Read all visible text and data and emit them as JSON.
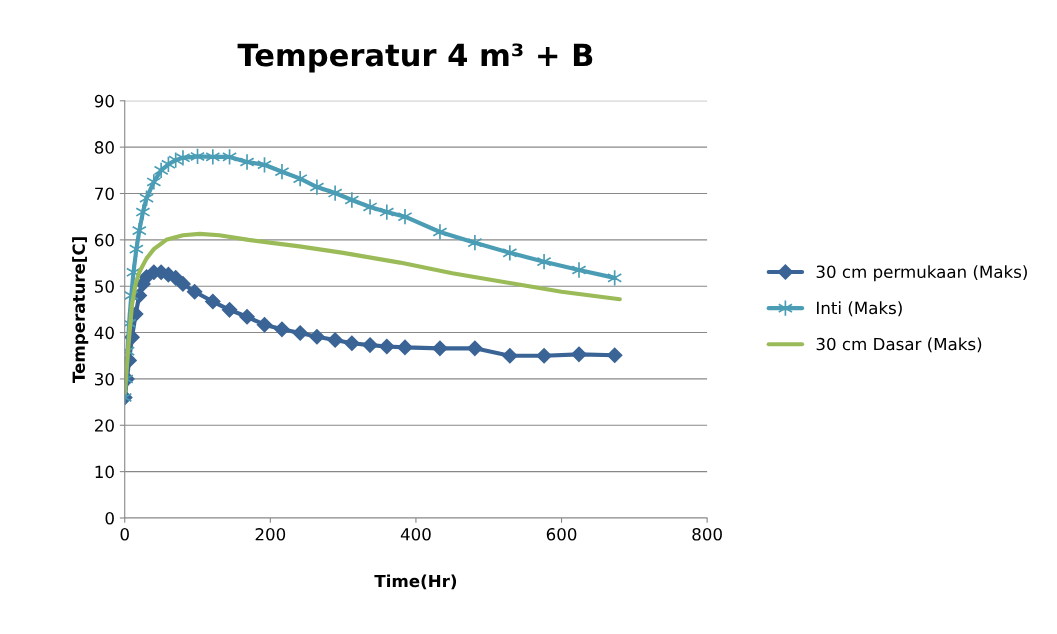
{
  "chart_data": {
    "type": "line",
    "title": "Temperatur 4 m³ + B",
    "xlabel": "Time(Hr)",
    "ylabel": "Temperature[C]",
    "xlim": [
      0,
      800
    ],
    "xticks": [
      0,
      200,
      400,
      600,
      800
    ],
    "ylim": [
      0,
      90
    ],
    "yticks": [
      0,
      10,
      20,
      30,
      40,
      50,
      60,
      70,
      80,
      90
    ],
    "grid": "y",
    "legend": "right",
    "series": [
      {
        "name": "30 cm permukaan (Maks)",
        "color": "#3b6496",
        "marker": "diamond",
        "x": [
          0,
          3,
          6,
          10,
          15,
          20,
          25,
          30,
          40,
          50,
          60,
          70,
          80,
          96,
          121,
          144,
          168,
          192,
          216,
          241,
          264,
          289,
          312,
          337,
          360,
          385,
          433,
          481,
          529,
          576,
          624,
          673
        ],
        "values": [
          26,
          30,
          34,
          39,
          44,
          48,
          50.5,
          52,
          53,
          53,
          52.5,
          51.8,
          50.5,
          48.8,
          46.7,
          44.9,
          43.4,
          41.7,
          40.7,
          39.9,
          39.1,
          38.4,
          37.7,
          37.3,
          37.0,
          36.8,
          36.6,
          36.6,
          35.0,
          35.0,
          35.3,
          35.1
        ]
      },
      {
        "name": "Inti (Maks)",
        "color": "#4a9db5",
        "marker": "cross",
        "x": [
          0,
          2,
          4,
          6,
          9,
          12,
          16,
          20,
          25,
          30,
          40,
          50,
          60,
          70,
          80,
          100,
          121,
          144,
          168,
          192,
          216,
          241,
          264,
          289,
          312,
          337,
          360,
          385,
          433,
          481,
          529,
          576,
          624,
          673
        ],
        "values": [
          26,
          30,
          36,
          42,
          48,
          53,
          58,
          62,
          66,
          69,
          72.5,
          75,
          76.3,
          77.2,
          77.7,
          78,
          77.9,
          77.9,
          76.8,
          76.2,
          74.7,
          73.2,
          71.4,
          70.1,
          68.6,
          67.1,
          66.0,
          65.0,
          61.7,
          59.4,
          57.2,
          55.3,
          53.5,
          51.8
        ]
      },
      {
        "name": "30 cm Dasar (Maks)",
        "color": "#9bbb59",
        "marker": "none",
        "x": [
          0,
          3,
          6,
          10,
          15,
          20,
          30,
          40,
          57,
          80,
          103,
          130,
          170,
          240,
          300,
          378,
          450,
          529,
          600,
          680
        ],
        "values": [
          27,
          33,
          39,
          46,
          50.5,
          53,
          56,
          58,
          60,
          61,
          61.3,
          61,
          60,
          58.6,
          57.2,
          55.1,
          52.8,
          50.7,
          48.8,
          47.2
        ]
      }
    ]
  }
}
